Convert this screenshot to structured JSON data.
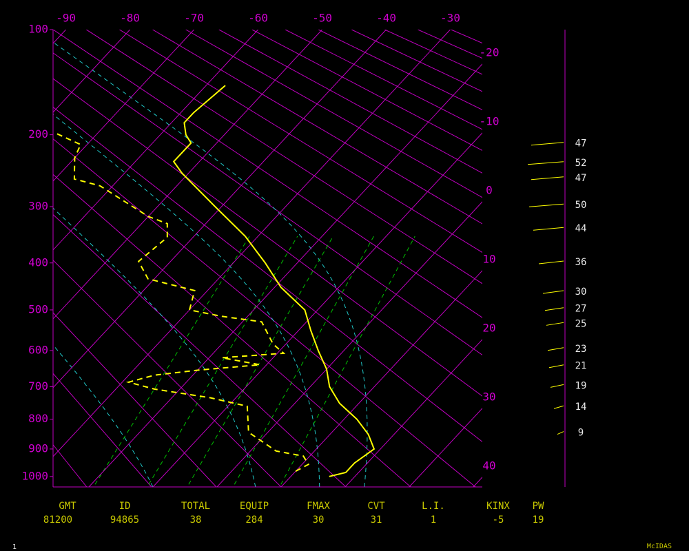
{
  "chart_data": {
    "type": "skew-t",
    "xlim": [
      -92,
      -25
    ],
    "ylim": [
      100,
      1040
    ],
    "yticks": [
      100,
      200,
      300,
      400,
      500,
      600,
      700,
      800,
      900,
      1000
    ],
    "temperature_ticks_top": [
      -90,
      -80,
      -70,
      -60,
      -50,
      -40,
      -30
    ],
    "temperature_ticks_right": [
      -20,
      -10,
      0,
      10,
      20,
      30,
      40
    ],
    "isotherm_color": "#c000c0",
    "series": [
      {
        "color": "#ffff00",
        "dashed": false,
        "pressure": [
          1000,
          985,
          950,
          900,
          850,
          800,
          750,
          700,
          650,
          600,
          550,
          500,
          450,
          400,
          350,
          300,
          250,
          234,
          210,
          200,
          186,
          175,
          147
        ],
        "temperature": [
          16,
          18,
          18,
          19,
          16,
          12,
          7,
          3,
          0,
          -4,
          -8,
          -12,
          -19,
          -25,
          -32,
          -41,
          -51,
          -54,
          -54,
          -56,
          -58,
          -58,
          -57
        ]
      },
      {
        "color": "#ffff00",
        "dashed": true,
        "pressure": [
          980,
          955,
          925,
          907,
          843,
          759,
          733,
          707,
          687,
          667,
          653,
          638,
          619,
          607,
          583,
          528,
          515,
          500,
          457,
          432,
          397,
          352,
          328,
          316,
          268,
          258,
          229,
          212,
          197
        ],
        "temperature": [
          10,
          11,
          9,
          4,
          -3,
          -7,
          -14,
          -24,
          -29,
          -26,
          -20,
          -11,
          -18,
          -9,
          -12,
          -17,
          -24,
          -30,
          -32,
          -41,
          -45,
          -44,
          -46,
          -50,
          -62,
          -67,
          -70,
          -71,
          -77
        ]
      }
    ],
    "winds": {
      "color": "#ffff00",
      "pressure": [
        211,
        236,
        257,
        298,
        337,
        399,
        460,
        498,
        533,
        596,
        642,
        698,
        762,
        845
      ],
      "speed": [
        47,
        52,
        47,
        50,
        44,
        36,
        30,
        27,
        25,
        23,
        21,
        19,
        14,
        9
      ]
    },
    "stats": {
      "headers": [
        "GMT",
        "ID",
        "TOTAL",
        "EQUIP",
        "FMAX",
        "CVT",
        "L.I.",
        "KINX",
        "PW"
      ],
      "values": [
        81200,
        94865,
        38,
        284,
        30,
        31,
        1,
        -5,
        19
      ]
    }
  },
  "footer": {
    "left": "1",
    "right": "McIDAS"
  }
}
